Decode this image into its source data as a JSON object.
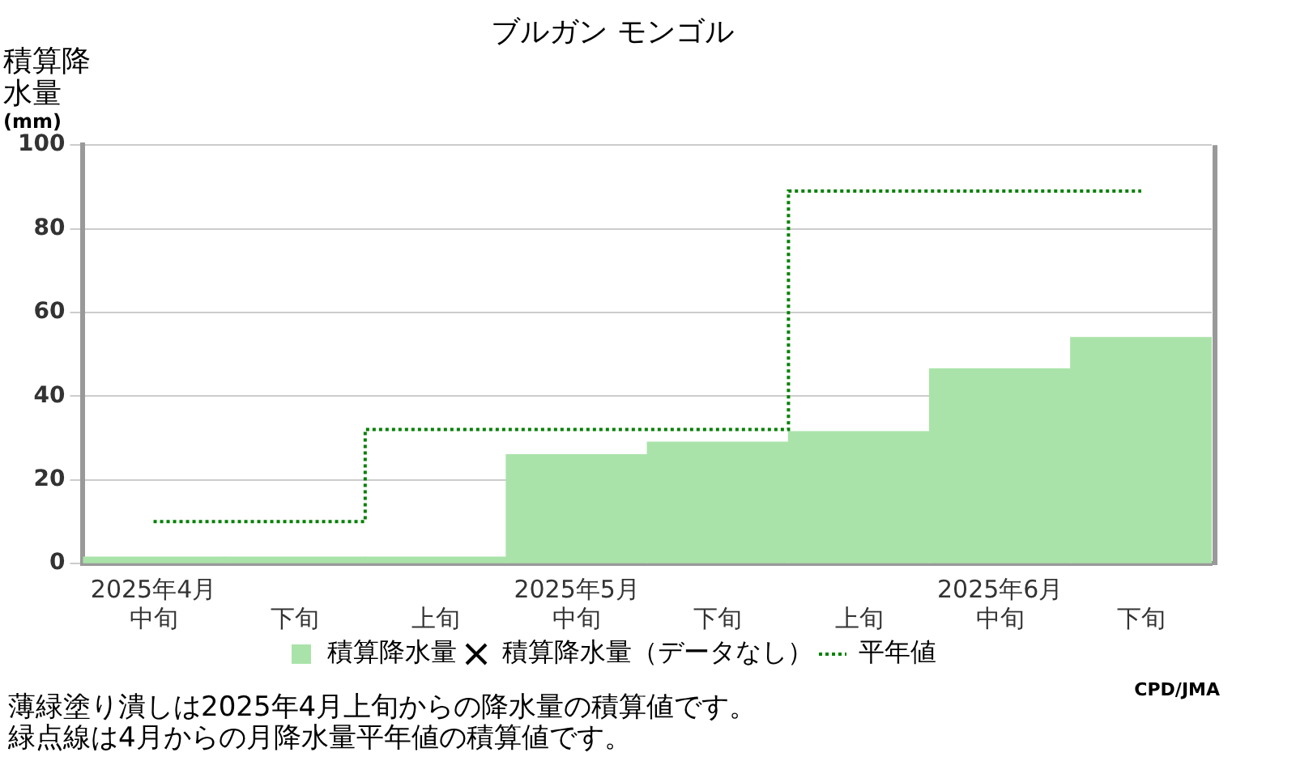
{
  "chart_data": {
    "type": "bar",
    "title": "ブルガン モンゴル",
    "ylabel": "積算降水量(mm)",
    "categories": [
      "2025年4月中旬",
      "下旬",
      "上旬",
      "2025年5月中旬",
      "下旬",
      "上旬",
      "2025年6月中旬",
      "下旬"
    ],
    "series": [
      {
        "name": "積算降水量",
        "color": "#aae3aa",
        "values": [
          1.5,
          1.5,
          1.5,
          26,
          29,
          31.5,
          46.5,
          54
        ]
      },
      {
        "name": "積算降水量（データなし）",
        "type": "scatter",
        "marker": "cross",
        "color": "#000000",
        "values": [
          null,
          null,
          null,
          null,
          null,
          null,
          null,
          null
        ]
      },
      {
        "name": "平年値",
        "type": "step",
        "color": "#008000",
        "line_style": "dotted",
        "values": [
          10,
          10,
          32,
          32,
          32,
          89,
          89,
          89
        ]
      }
    ],
    "ylim": [
      0,
      100
    ],
    "yticks": [
      0,
      20,
      40,
      60,
      80,
      100
    ],
    "grid": "y",
    "legend": "bottom",
    "annotations": [
      "CPD/JMA",
      "薄緑塗り潰しは2025年4月上旬からの降水量の積算値です。",
      "緑点線は4月からの月降水量平年値の積算値です。"
    ]
  }
}
